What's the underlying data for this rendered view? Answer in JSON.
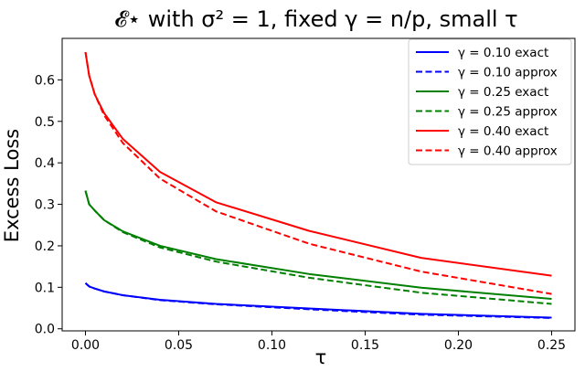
{
  "chart_data": {
    "type": "line",
    "title": "𝓔⋆ with σ² = 1, fixed γ = n/p, small τ",
    "xlabel": "τ",
    "ylabel": "Excess Loss",
    "xlim": [
      -0.0125,
      0.2625
    ],
    "ylim": [
      -0.005,
      0.7
    ],
    "xticks": [
      0.0,
      0.05,
      0.1,
      0.15,
      0.2,
      0.25
    ],
    "xtick_labels": [
      "0.00",
      "0.05",
      "0.10",
      "0.15",
      "0.20",
      "0.25"
    ],
    "yticks": [
      0.0,
      0.1,
      0.2,
      0.3,
      0.4,
      0.5,
      0.6
    ],
    "ytick_labels": [
      "0.0",
      "0.1",
      "0.2",
      "0.3",
      "0.4",
      "0.5",
      "0.6"
    ],
    "grid": false,
    "legend_position": "top-right",
    "colors": {
      "blue": "#0000ff",
      "green": "#008000",
      "red": "#ff0000"
    },
    "x": [
      0.0,
      0.002,
      0.005,
      0.01,
      0.02,
      0.04,
      0.07,
      0.12,
      0.18,
      0.25
    ],
    "series": [
      {
        "name": "γ = 0.10 exact",
        "color": "#0000ff",
        "dash": "solid",
        "values": [
          0.11,
          0.102,
          0.097,
          0.09,
          0.081,
          0.07,
          0.06,
          0.049,
          0.036,
          0.027
        ]
      },
      {
        "name": "γ = 0.10 approx",
        "color": "#0000ff",
        "dash": "dashed",
        "values": [
          0.11,
          0.102,
          0.097,
          0.09,
          0.081,
          0.069,
          0.059,
          0.047,
          0.034,
          0.026
        ]
      },
      {
        "name": "γ = 0.25 exact",
        "color": "#008000",
        "dash": "solid",
        "values": [
          0.333,
          0.3,
          0.285,
          0.262,
          0.235,
          0.2,
          0.168,
          0.132,
          0.099,
          0.072
        ]
      },
      {
        "name": "γ = 0.25 approx",
        "color": "#008000",
        "dash": "dashed",
        "values": [
          0.333,
          0.3,
          0.285,
          0.262,
          0.233,
          0.196,
          0.162,
          0.123,
          0.087,
          0.06
        ]
      },
      {
        "name": "γ = 0.40 exact",
        "color": "#ff0000",
        "dash": "solid",
        "values": [
          0.667,
          0.61,
          0.565,
          0.52,
          0.458,
          0.378,
          0.305,
          0.236,
          0.171,
          0.128
        ]
      },
      {
        "name": "γ = 0.40 approx",
        "color": "#ff0000",
        "dash": "dashed",
        "values": [
          0.667,
          0.61,
          0.565,
          0.515,
          0.448,
          0.362,
          0.283,
          0.205,
          0.138,
          0.084
        ]
      }
    ]
  }
}
